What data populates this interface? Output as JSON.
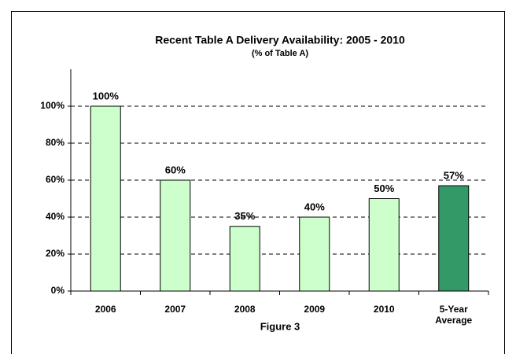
{
  "chart_data": {
    "type": "bar",
    "title": "Recent Table A Delivery Availability: 2005 - 2010",
    "subtitle": "(% of Table A)",
    "caption": "Figure 3",
    "categories": [
      "2006",
      "2007",
      "2008",
      "2009",
      "2010",
      "5-Year Average"
    ],
    "values": [
      100,
      60,
      35,
      40,
      50,
      57
    ],
    "value_labels": [
      "100%",
      "60%",
      "35%",
      "40%",
      "50%",
      "57%"
    ],
    "colors": [
      "#ccffcc",
      "#ccffcc",
      "#ccffcc",
      "#ccffcc",
      "#ccffcc",
      "#339966"
    ],
    "ylim": [
      0,
      120
    ],
    "yticks": [
      {
        "value": 0,
        "label": "0%"
      },
      {
        "value": 20,
        "label": "20%"
      },
      {
        "value": 40,
        "label": "40%"
      },
      {
        "value": 60,
        "label": "60%"
      },
      {
        "value": 80,
        "label": "80%"
      },
      {
        "value": 100,
        "label": "100%"
      }
    ],
    "grid": true
  }
}
